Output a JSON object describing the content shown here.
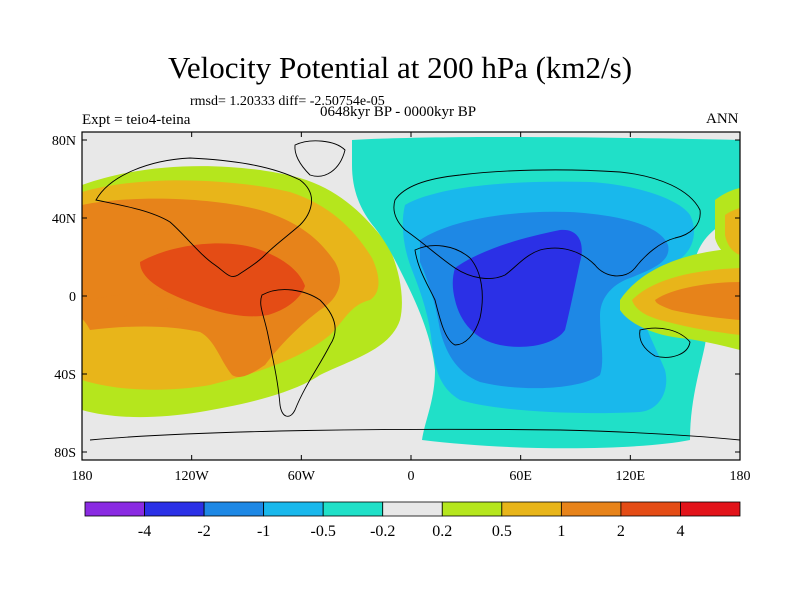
{
  "title": "Velocity Potential at 200 hPa (km2/s)",
  "stats": "rmsd= 1.20333 diff= -2.50754e-05",
  "left_label": "Expt = teio4-teina",
  "center_label": "0648kyr BP - 0000kyr BP",
  "right_label": "ANN",
  "lat_ticks": [
    {
      "label": "80N",
      "lat": 80
    },
    {
      "label": "40N",
      "lat": 40
    },
    {
      "label": "0",
      "lat": 0
    },
    {
      "label": "40S",
      "lat": -40
    },
    {
      "label": "80S",
      "lat": -80
    }
  ],
  "lon_ticks": [
    {
      "label": "180",
      "lon": -180
    },
    {
      "label": "120W",
      "lon": -120
    },
    {
      "label": "60W",
      "lon": -60
    },
    {
      "label": "0",
      "lon": 0
    },
    {
      "label": "60E",
      "lon": 60
    },
    {
      "label": "120E",
      "lon": 120
    },
    {
      "label": "180",
      "lon": 180
    }
  ],
  "colorbar": {
    "colors": [
      "#8a2be2",
      "#2b30e6",
      "#1e88e5",
      "#19b8ec",
      "#20e0c8",
      "#e8e8e8",
      "#b5e61d",
      "#e8b51a",
      "#e7831a",
      "#e44c15",
      "#e2131a"
    ],
    "labels": [
      "-4",
      "-2",
      "-1",
      "-0.5",
      "-0.2",
      "0.2",
      "0.5",
      "1",
      "2",
      "4"
    ]
  }
}
